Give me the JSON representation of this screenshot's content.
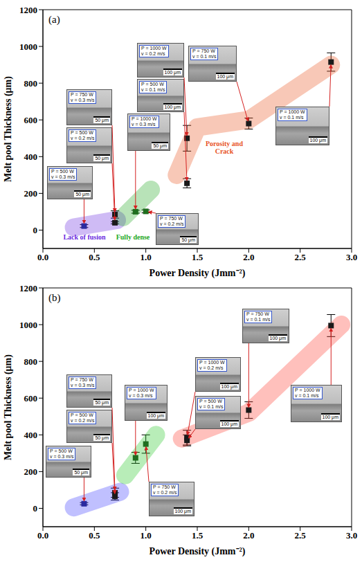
{
  "chart_data": [
    {
      "type": "scatter",
      "panel_label": "(a)",
      "xlabel": "Power Density (Jmm⁻²)",
      "ylabel": "Melt pool Thickness (μm)",
      "xlim": [
        0,
        3
      ],
      "ylim": [
        -100,
        1200
      ],
      "xticks": [
        {
          "value": 0,
          "label": "0.0"
        },
        {
          "value": 0.5,
          "label": "0.5"
        },
        {
          "value": 1,
          "label": "1.0"
        },
        {
          "value": 1.5,
          "label": "1.5"
        },
        {
          "value": 2,
          "label": "2.0"
        },
        {
          "value": 2.5,
          "label": "2.5"
        },
        {
          "value": 3,
          "label": "3.0"
        }
      ],
      "yticks": [
        0,
        200,
        400,
        600,
        800,
        1000,
        1200
      ],
      "marker": "square",
      "x": [
        0.4,
        0.7,
        0.7,
        0.9,
        1.0,
        1.4,
        1.4,
        2.0,
        2.8
      ],
      "values": [
        22,
        85,
        40,
        100,
        102,
        500,
        255,
        580,
        915
      ],
      "errors": [
        8,
        20,
        6,
        8,
        8,
        70,
        25,
        30,
        50
      ],
      "colors": [
        "#2a2aa0",
        "#1a1a1a",
        "#1a1a1a",
        "#1f6e1f",
        "#1f6e1f",
        "#1a1a1a",
        "#1a1a1a",
        "#1a1a1a",
        "#1a1a1a"
      ],
      "regions": [
        {
          "label": "Lack of fusion",
          "color": "#6a2adf",
          "x": [
            0.3,
            0.72
          ],
          "y": [
            15,
            55
          ]
        },
        {
          "label": "Fully dense",
          "color": "#22a822",
          "x": [
            0.78,
            1.05
          ],
          "y": [
            70,
            220
          ]
        },
        {
          "label": "Porosity and Crack",
          "color": "#e8531f",
          "x": [
            1.3,
            1.5,
            2.0,
            2.8
          ],
          "y": [
            300,
            560,
            600,
            900
          ]
        }
      ],
      "insets": [
        {
          "power": "P = 500 W",
          "speed": "v = 0.3 m/s",
          "scale": "50 μm",
          "x": 0.4,
          "y": 22
        },
        {
          "power": "P = 750 W",
          "speed": "v = 0.3 m/s",
          "scale": "50 μm",
          "x": 0.7,
          "y": 85
        },
        {
          "power": "P = 500 W",
          "speed": "v = 0.2 m/s",
          "scale": "50 μm",
          "x": 0.7,
          "y": 40
        },
        {
          "power": "P = 1000 W",
          "speed": "v = 0.3 m/s",
          "scale": "50 μm",
          "x": 0.9,
          "y": 100
        },
        {
          "power": "P = 750 W",
          "speed": "v = 0.2 m/s",
          "scale": "50 μm",
          "x": 1.0,
          "y": 102
        },
        {
          "power": "P = 1000 W",
          "speed": "v = 0.2 m/s",
          "scale": "100 μm",
          "x": 1.4,
          "y": 500
        },
        {
          "power": "P = 500 W",
          "speed": "v = 0.1 m/s",
          "scale": "100 μm",
          "x": 1.4,
          "y": 255
        },
        {
          "power": "P = 750 W",
          "speed": "v = 0.1 m/s",
          "scale": "100 μm",
          "x": 2.0,
          "y": 580
        },
        {
          "power": "P = 1000 W",
          "speed": "v = 0.1 m/s",
          "scale": "100 μm",
          "x": 2.8,
          "y": 915
        }
      ]
    },
    {
      "type": "scatter",
      "panel_label": "(b)",
      "xlabel": "Power Density (Jmm⁻²)",
      "ylabel": "Melt pool Thickness (μm)",
      "xlim": [
        0,
        3
      ],
      "ylim": [
        -100,
        1200
      ],
      "xticks": [
        {
          "value": 0,
          "label": "0.0"
        },
        {
          "value": 0.5,
          "label": "0.5"
        },
        {
          "value": 1,
          "label": "1.0"
        },
        {
          "value": 1.5,
          "label": "1.5"
        },
        {
          "value": 2,
          "label": "2.0"
        },
        {
          "value": 2.5,
          "label": "2.5"
        },
        {
          "value": 3,
          "label": "3.0"
        }
      ],
      "yticks": [
        0,
        200,
        400,
        600,
        800,
        1000,
        1200
      ],
      "marker": "square",
      "x": [
        0.4,
        0.7,
        0.7,
        0.9,
        1.0,
        1.4,
        1.4,
        2.0,
        2.8
      ],
      "values": [
        25,
        85,
        65,
        275,
        350,
        385,
        370,
        535,
        995
      ],
      "errors": [
        6,
        25,
        20,
        30,
        50,
        40,
        30,
        45,
        60
      ],
      "colors": [
        "#2a2aa0",
        "#1a1a1a",
        "#1a1a1a",
        "#1f6e1f",
        "#1f6e1f",
        "#1a1a1a",
        "#1a1a1a",
        "#1a1a1a",
        "#1a1a1a"
      ],
      "regions": [
        {
          "color": "#3b3bff",
          "x": [
            0.3,
            0.75
          ],
          "y": [
            5,
            90
          ]
        },
        {
          "color": "#22c822",
          "x": [
            0.8,
            1.1
          ],
          "y": [
            180,
            400
          ]
        },
        {
          "color": "#ff3b2e",
          "x": [
            1.35,
            2.0,
            2.9
          ],
          "y": [
            380,
            520,
            1000
          ]
        }
      ],
      "insets": [
        {
          "power": "P = 500 W",
          "speed": "v = 0.3 m/s",
          "scale": "50 μm",
          "x": 0.4,
          "y": 25
        },
        {
          "power": "P = 750 W",
          "speed": "v = 0.3 m/s",
          "scale": "50 μm",
          "x": 0.7,
          "y": 85
        },
        {
          "power": "P = 500 W",
          "speed": "v = 0.2 m/s",
          "scale": "50 μm",
          "x": 0.7,
          "y": 65
        },
        {
          "power": "P = 1000 W",
          "speed": "v = 0.3 m/s",
          "scale": "100 μm",
          "x": 0.9,
          "y": 275
        },
        {
          "power": "P = 750 W",
          "speed": "v = 0.2 m/s",
          "scale": "100 μm",
          "x": 1.0,
          "y": 350
        },
        {
          "power": "P = 1000 W",
          "speed": "v = 0.2 m/s",
          "scale": "100 μm",
          "x": 1.4,
          "y": 385
        },
        {
          "power": "P = 500 W",
          "speed": "v = 0.1 m/s",
          "scale": "100 μm",
          "x": 1.4,
          "y": 370
        },
        {
          "power": "P = 750 W",
          "speed": "v = 0.1 m/s",
          "scale": "100 μm",
          "x": 2.0,
          "y": 535
        },
        {
          "power": "P = 1000 W",
          "speed": "v = 0.1 m/s",
          "scale": "100 μm",
          "x": 2.8,
          "y": 995
        }
      ]
    }
  ]
}
